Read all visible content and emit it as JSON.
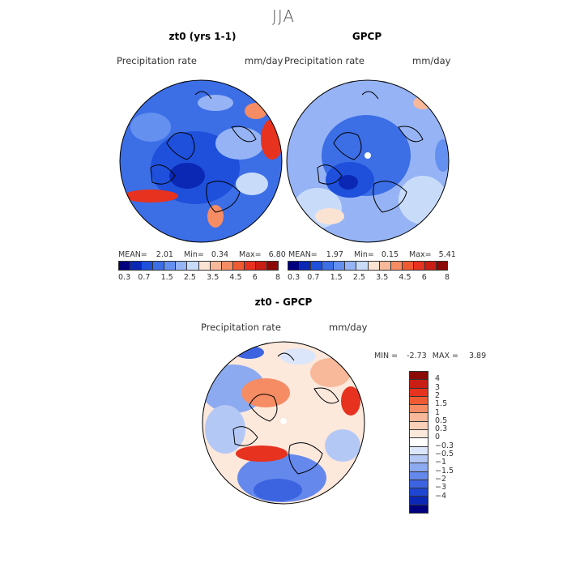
{
  "season": "JJA",
  "panels": [
    {
      "id": "model",
      "title": "zt0 (yrs 1-1)",
      "field_label": "Precipitation rate",
      "units": "mm/day",
      "stats": {
        "mean_label": "MEAN=",
        "mean": "2.01",
        "min_label": "Min=",
        "min": "0.34",
        "max_label": "Max=",
        "max": "6.80"
      }
    },
    {
      "id": "obs",
      "title": "GPCP",
      "field_label": "Precipitation rate",
      "units": "mm/day",
      "stats": {
        "mean_label": "MEAN=",
        "mean": "1.97",
        "min_label": "Min=",
        "min": "0.15",
        "max_label": "Max=",
        "max": "5.41"
      }
    }
  ],
  "precip_colorbar": {
    "colors": [
      "#00007f",
      "#0a28b4",
      "#1e50dc",
      "#3c6ee6",
      "#6490f0",
      "#96b4f5",
      "#c8dcfa",
      "#fbe3d4",
      "#f8b89a",
      "#f58c64",
      "#ee5a32",
      "#e6321e",
      "#c81e14",
      "#8c0a05"
    ],
    "tick_labels": [
      "0.3",
      "0.7",
      "1.5",
      "2.5",
      "3.5",
      "4.5",
      "6",
      "8"
    ]
  },
  "diff_panel": {
    "title": "zt0 - GPCP",
    "field_label": "Precipitation rate",
    "units": "mm/day",
    "min_label": "MIN =",
    "min": "-2.73",
    "max_label": "MAX =",
    "max": "3.89"
  },
  "diff_colorbar": {
    "colors": [
      "#8c0a05",
      "#c81e14",
      "#e6321e",
      "#ee5a32",
      "#f58c64",
      "#f8b89a",
      "#fbd0b8",
      "#fde8dc",
      "#ffffff",
      "#dce6fa",
      "#b4c8f5",
      "#8caaf0",
      "#6488eb",
      "#3c64e1",
      "#1e46d2",
      "#0a28b4",
      "#00007f"
    ],
    "tick_labels": [
      "4",
      "3",
      "2",
      "1.5",
      "1",
      "0.5",
      "0.3",
      "0",
      "−0.3",
      "−0.5",
      "−1",
      "−1.5",
      "−2",
      "−3",
      "−4"
    ]
  },
  "map_colors": {
    "ocean_base": "#3c6ee6",
    "deep_blue": "#1e50dc",
    "light_blue": "#96b4f5",
    "pale": "#c8dcfa",
    "peach": "#f8b89a",
    "red": "#e6321e",
    "diff_base": "#fde8dc"
  }
}
